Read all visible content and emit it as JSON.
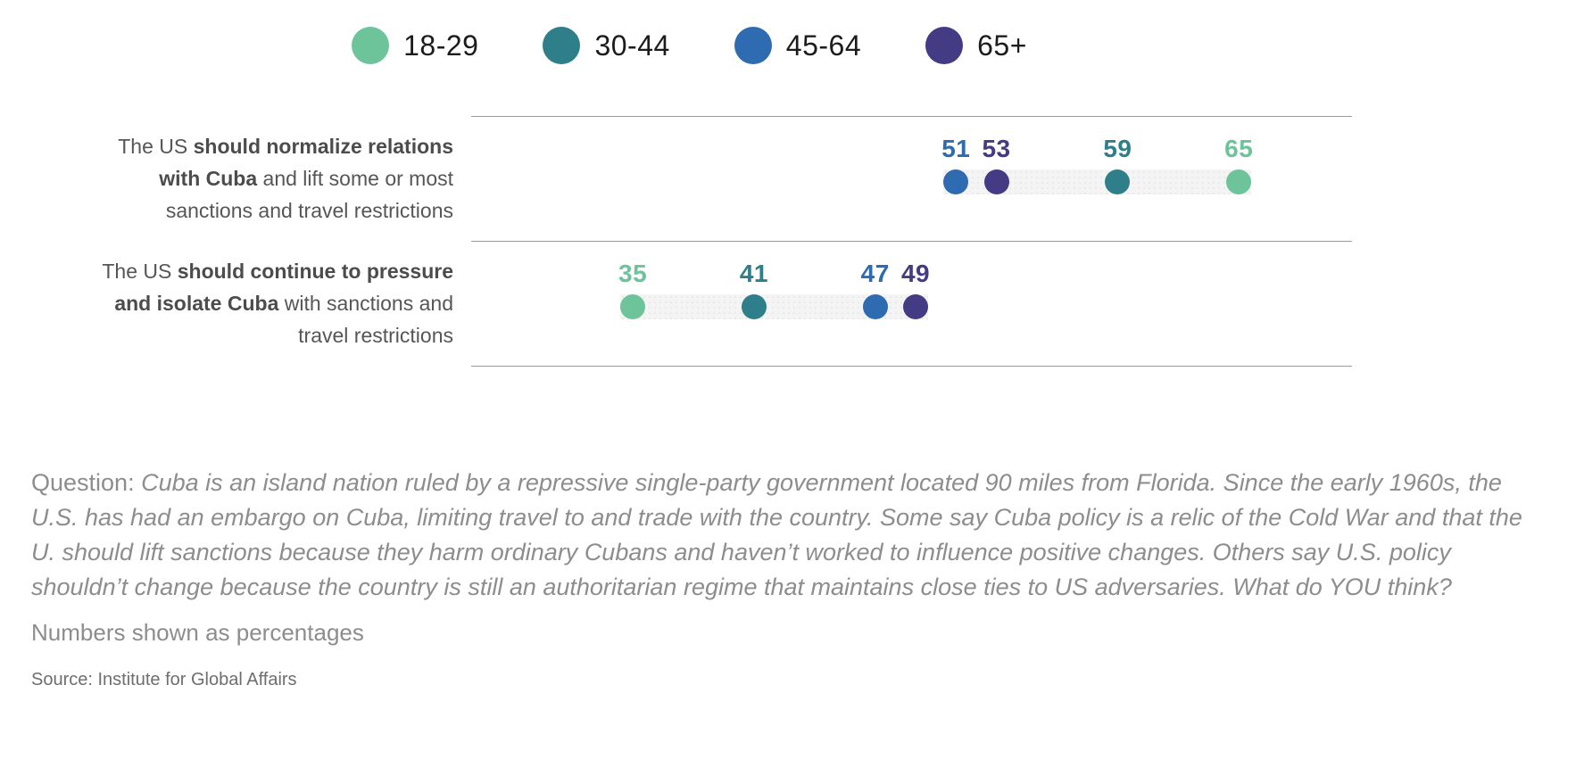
{
  "legend": {
    "items": [
      {
        "label": "18-29",
        "color": "#6ec49a"
      },
      {
        "label": "30-44",
        "color": "#2f7f8a"
      },
      {
        "label": "45-64",
        "color": "#2f6bb0"
      },
      {
        "label": "65+",
        "color": "#433c84"
      }
    ]
  },
  "chart_data": {
    "type": "dot_plot",
    "title": "",
    "legend_position": "top",
    "grid": false,
    "axis": {
      "min": 27,
      "max": 70.6,
      "unit": "percent"
    },
    "groups": [
      "18-29",
      "30-44",
      "45-64",
      "65+"
    ],
    "group_colors": {
      "18-29": "#6ec49a",
      "30-44": "#2f7f8a",
      "45-64": "#2f6bb0",
      "65+": "#433c84"
    },
    "rows": [
      {
        "label_segments": [
          {
            "text": "The US ",
            "bold": false
          },
          {
            "text": "should normalize relations with Cuba",
            "bold": true
          },
          {
            "text": " and lift some or most sanctions and travel restrictions",
            "bold": false
          }
        ],
        "values": {
          "18-29": 65,
          "30-44": 59,
          "45-64": 51,
          "65+": 53
        }
      },
      {
        "label_segments": [
          {
            "text": "The US ",
            "bold": false
          },
          {
            "text": "should continue to pressure and isolate Cuba",
            "bold": true
          },
          {
            "text": " with sanctions and travel restrictions",
            "bold": false
          }
        ],
        "values": {
          "18-29": 35,
          "30-44": 41,
          "45-64": 47,
          "65+": 49
        }
      }
    ]
  },
  "footer": {
    "question_prefix": "Question: ",
    "question_body": "Cuba is an island nation ruled by a repressive single-party government located 90 miles from Florida. Since the early 1960s, the U.S. has had an embargo on Cuba, limiting travel to and trade with the country. Some say Cuba policy is a relic of the Cold War and that the U. should lift sanctions because they harm ordinary Cubans and haven’t worked to influence positive changes. Others say U.S. policy shouldn’t change because the country is still an authoritarian regime that maintains close ties to US adversaries. What do YOU think?",
    "note": "Numbers shown as percentages",
    "source": "Source: Institute for Global Affairs"
  }
}
